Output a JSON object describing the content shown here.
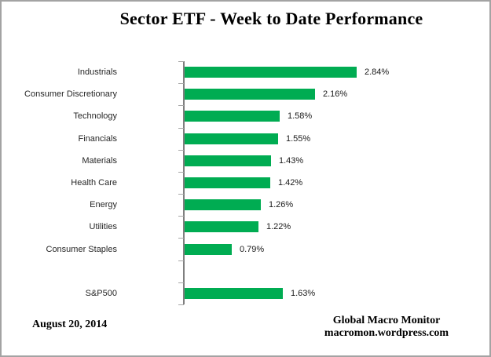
{
  "title": "Sector ETF - Week to Date Performance",
  "footer": {
    "date": "August 20, 2014",
    "source_line1": "Global Macro Monitor",
    "source_line2": "macromon.wordpress.com"
  },
  "chart_data": {
    "type": "bar",
    "orientation": "horizontal",
    "title": "Sector ETF - Week to Date Performance",
    "categories": [
      "Industrials",
      "Consumer Discretionary",
      "Technology",
      "Financials",
      "Materials",
      "Health Care",
      "Energy",
      "Utilities",
      "Consumer Staples",
      "",
      "S&P500"
    ],
    "values": [
      2.84,
      2.16,
      1.58,
      1.55,
      1.43,
      1.42,
      1.26,
      1.22,
      0.79,
      null,
      1.63
    ],
    "value_labels": [
      "2.84%",
      "2.16%",
      "1.58%",
      "1.55%",
      "1.43%",
      "1.42%",
      "1.26%",
      "1.22%",
      "0.79%",
      "",
      "1.63%"
    ],
    "xlabel": "",
    "ylabel": "",
    "xlim": [
      0,
      3.5
    ],
    "grid": false,
    "legend": false,
    "bar_color": "#00AC52",
    "axis_color": "#7f7f7f",
    "tick_color": "#a6a6a6"
  }
}
